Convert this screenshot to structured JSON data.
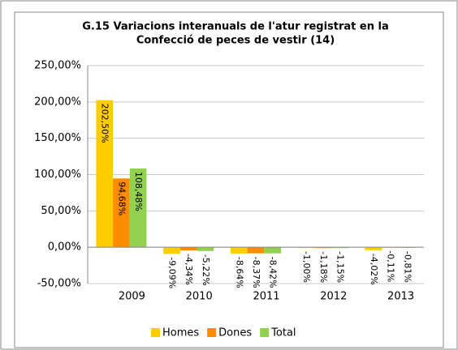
{
  "chart_data": {
    "type": "bar",
    "title": [
      "G.15 Variacions interanuals de l'atur registrat en la",
      "Confecció de peces de vestir (14)"
    ],
    "categories": [
      "2009",
      "2010",
      "2011",
      "2012",
      "2013"
    ],
    "series": [
      {
        "name": "Homes",
        "color": "#ffcc00",
        "values": [
          202.5,
          -9.09,
          -8.64,
          -1.0,
          -4.02
        ],
        "value_labels": [
          "202,50%",
          "-9,09%",
          "-8,64%",
          "-1,00%",
          "-4,02%"
        ]
      },
      {
        "name": "Dones",
        "color": "#ff8c00",
        "values": [
          94.68,
          -4.34,
          -8.37,
          -1.18,
          -0.11
        ],
        "value_labels": [
          "94,68%",
          "-4,34%",
          "-8,37%",
          "-1,18%",
          "-0,11%"
        ]
      },
      {
        "name": "Total",
        "color": "#92d050",
        "values": [
          108.48,
          -5.22,
          -8.42,
          -1.15,
          -0.81
        ],
        "value_labels": [
          "108,48%",
          "-5,22%",
          "-8,42%",
          "-1,15%",
          "-0,81%"
        ]
      }
    ],
    "ylim": [
      -50,
      250
    ],
    "yticks": [
      {
        "value": -50,
        "label": "-50,00%"
      },
      {
        "value": 0,
        "label": "0,00%"
      },
      {
        "value": 50,
        "label": "50,00%"
      },
      {
        "value": 100,
        "label": "100,00%"
      },
      {
        "value": 150,
        "label": "150,00%"
      },
      {
        "value": 200,
        "label": "200,00%"
      },
      {
        "value": 250,
        "label": "250,00%"
      }
    ],
    "grid": true,
    "legend": "bottom"
  }
}
